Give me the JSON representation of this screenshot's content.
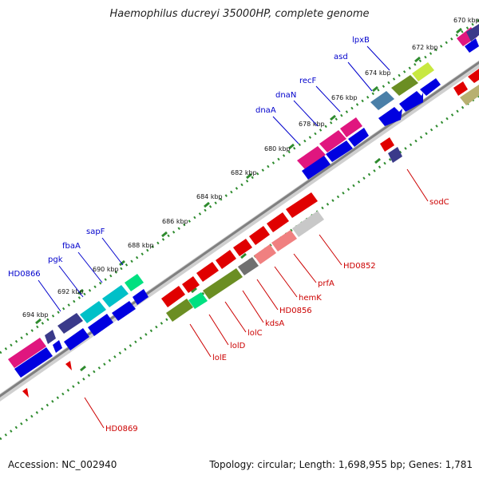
{
  "title": "Haemophilus ducreyi 35000HP, complete genome",
  "accession": "Accession: NC_002940",
  "summary": "Topology: circular; Length: 1,698,955 bp; Genes: 1,781",
  "ticks": [
    {
      "label": "670 kbp",
      "kb": 670
    },
    {
      "label": "672 kbp",
      "kb": 672
    },
    {
      "label": "674 kbp",
      "kb": 674
    },
    {
      "label": "676 kbp",
      "kb": 676
    },
    {
      "label": "678 kbp",
      "kb": 678
    },
    {
      "label": "680 kbp",
      "kb": 680
    },
    {
      "label": "682 kbp",
      "kb": 682
    },
    {
      "label": "684 kbp",
      "kb": 684
    },
    {
      "label": "686 kbp",
      "kb": 686
    },
    {
      "label": "688 kbp",
      "kb": 688
    },
    {
      "label": "690 kbp",
      "kb": 690
    },
    {
      "label": "692 kbp",
      "kb": 692
    },
    {
      "label": "694 kbp",
      "kb": 694
    }
  ],
  "forward_genes": [
    {
      "name": "lpxB",
      "color": "#4a7fa8"
    },
    {
      "name": "asd",
      "color": "#6b8e23"
    },
    {
      "name": "recF",
      "color": "#9ad14a"
    },
    {
      "name": "dnaN",
      "color": "#e0167f"
    },
    {
      "name": "dnaA",
      "color": "#e0167f"
    },
    {
      "name": "sapF",
      "color": "#00d080"
    },
    {
      "name": "fbaA",
      "color": "#00b8c8"
    },
    {
      "name": "pgk",
      "color": "#00b8c8"
    },
    {
      "name": "HD0866",
      "color": "#3a3a8a"
    }
  ],
  "reverse_genes": [
    {
      "name": "sodC",
      "color": "#e00000"
    },
    {
      "name": "HD0852",
      "color": "#c8c8c8"
    },
    {
      "name": "prfA",
      "color": "#f08080"
    },
    {
      "name": "hemK",
      "color": "#f08080"
    },
    {
      "name": "HD0856",
      "color": "#707070"
    },
    {
      "name": "kdsA",
      "color": "#e00000"
    },
    {
      "name": "lolC",
      "color": "#e00000"
    },
    {
      "name": "lolD",
      "color": "#6b8e23"
    },
    {
      "name": "lolE",
      "color": "#6b8e23"
    },
    {
      "name": "HD0869",
      "color": "#e00000"
    }
  ],
  "colors": {
    "forward_label": "#0000cc",
    "reverse_label": "#cc0000",
    "backbone": "#808080",
    "tick_green": "#2e8b2e",
    "cds_blue": "#0000e0"
  }
}
